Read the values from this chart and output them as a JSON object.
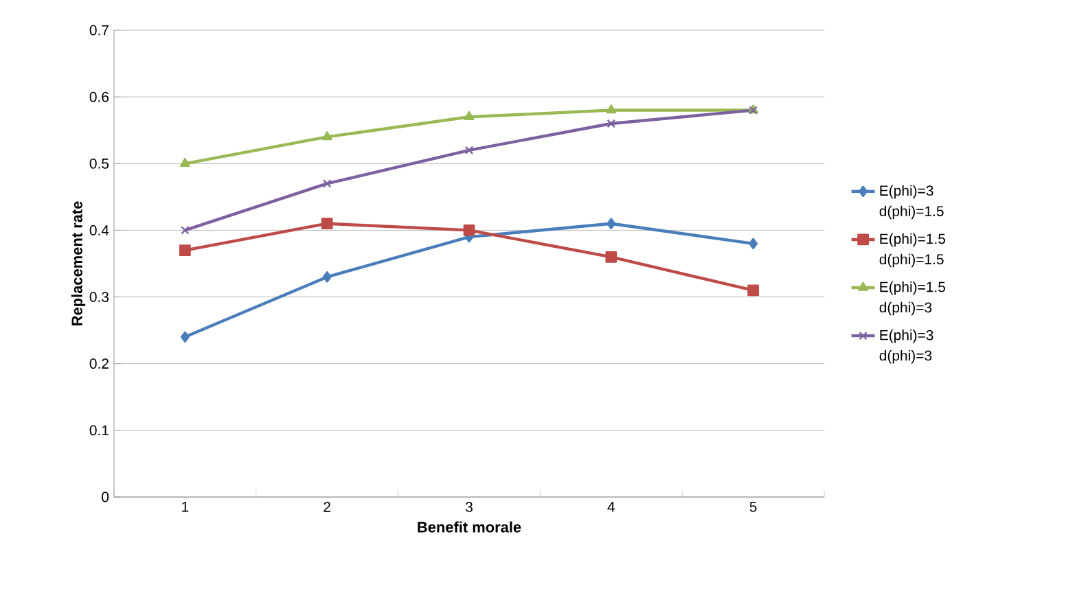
{
  "chart_data": {
    "type": "line",
    "xlabel": "Benefit morale",
    "ylabel": "Replacement rate",
    "categories": [
      "1",
      "2",
      "3",
      "4",
      "5"
    ],
    "series": [
      {
        "name": "E(phi)=3 d(phi)=1.5",
        "color": "#4a7ebb",
        "marker": "diamond",
        "values": [
          0.24,
          0.33,
          0.39,
          0.41,
          0.38
        ]
      },
      {
        "name": "E(phi)=1.5 d(phi)=1.5",
        "color": "#be4b48",
        "marker": "square",
        "values": [
          0.37,
          0.41,
          0.4,
          0.36,
          0.31
        ]
      },
      {
        "name": "E(phi)=1.5 d(phi)=3",
        "color": "#98b954",
        "marker": "triangle",
        "values": [
          0.5,
          0.54,
          0.57,
          0.58,
          0.58
        ]
      },
      {
        "name": "E(phi)=3 d(phi)=3",
        "color": "#7d60a0",
        "marker": "cross",
        "values": [
          0.4,
          0.47,
          0.52,
          0.56,
          0.58
        ]
      }
    ],
    "ylim": [
      0,
      0.7
    ],
    "yticks": [
      0,
      0.1,
      0.2,
      0.3,
      0.4,
      0.5,
      0.6,
      0.7
    ],
    "grid": "y",
    "legend": "right"
  }
}
